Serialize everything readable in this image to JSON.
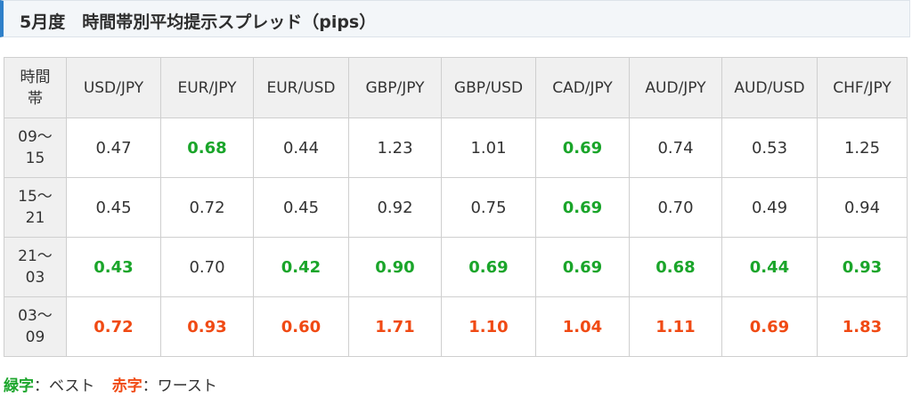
{
  "title": "5月度　時間帯別平均提示スプレッド（pips）",
  "colors": {
    "accent": "#2f80c9",
    "best": "#1aa52a",
    "worst": "#f04a14"
  },
  "table": {
    "corner_line1": "時間",
    "corner_line2": "帯",
    "columns": [
      "USD/JPY",
      "EUR/JPY",
      "EUR/USD",
      "GBP/JPY",
      "GBP/USD",
      "CAD/JPY",
      "AUD/JPY",
      "AUD/USD",
      "CHF/JPY"
    ],
    "rows": [
      {
        "period_line1": "09〜",
        "period_line2": "15",
        "cells": [
          {
            "value": "0.47",
            "status": "normal"
          },
          {
            "value": "0.68",
            "status": "best"
          },
          {
            "value": "0.44",
            "status": "normal"
          },
          {
            "value": "1.23",
            "status": "normal"
          },
          {
            "value": "1.01",
            "status": "normal"
          },
          {
            "value": "0.69",
            "status": "best"
          },
          {
            "value": "0.74",
            "status": "normal"
          },
          {
            "value": "0.53",
            "status": "normal"
          },
          {
            "value": "1.25",
            "status": "normal"
          }
        ]
      },
      {
        "period_line1": "15〜",
        "period_line2": "21",
        "cells": [
          {
            "value": "0.45",
            "status": "normal"
          },
          {
            "value": "0.72",
            "status": "normal"
          },
          {
            "value": "0.45",
            "status": "normal"
          },
          {
            "value": "0.92",
            "status": "normal"
          },
          {
            "value": "0.75",
            "status": "normal"
          },
          {
            "value": "0.69",
            "status": "best"
          },
          {
            "value": "0.70",
            "status": "normal"
          },
          {
            "value": "0.49",
            "status": "normal"
          },
          {
            "value": "0.94",
            "status": "normal"
          }
        ]
      },
      {
        "period_line1": "21〜",
        "period_line2": "03",
        "cells": [
          {
            "value": "0.43",
            "status": "best"
          },
          {
            "value": "0.70",
            "status": "normal"
          },
          {
            "value": "0.42",
            "status": "best"
          },
          {
            "value": "0.90",
            "status": "best"
          },
          {
            "value": "0.69",
            "status": "best"
          },
          {
            "value": "0.69",
            "status": "best"
          },
          {
            "value": "0.68",
            "status": "best"
          },
          {
            "value": "0.44",
            "status": "best"
          },
          {
            "value": "0.93",
            "status": "best"
          }
        ]
      },
      {
        "period_line1": "03〜",
        "period_line2": "09",
        "cells": [
          {
            "value": "0.72",
            "status": "worst"
          },
          {
            "value": "0.93",
            "status": "worst"
          },
          {
            "value": "0.60",
            "status": "worst"
          },
          {
            "value": "1.71",
            "status": "worst"
          },
          {
            "value": "1.10",
            "status": "worst"
          },
          {
            "value": "1.04",
            "status": "worst"
          },
          {
            "value": "1.11",
            "status": "worst"
          },
          {
            "value": "0.69",
            "status": "worst"
          },
          {
            "value": "1.83",
            "status": "worst"
          }
        ]
      }
    ]
  },
  "legend": {
    "best_label": "緑字",
    "best_desc": "：ベスト",
    "worst_label": "赤字",
    "worst_desc": "：ワースト"
  }
}
